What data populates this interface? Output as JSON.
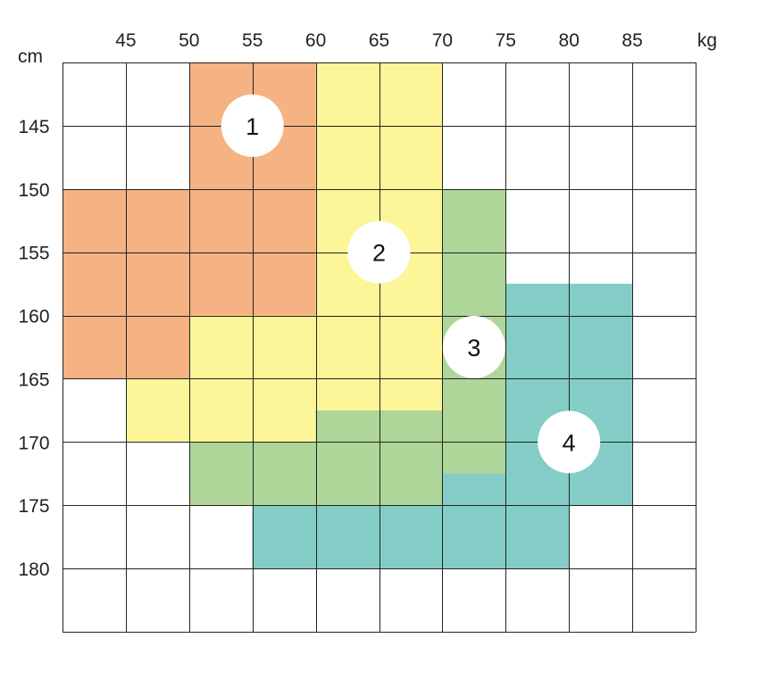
{
  "chart_data": {
    "type": "heatmap",
    "title": "",
    "x_unit": "kg",
    "y_unit": "cm",
    "x_ticks": [
      45,
      50,
      55,
      60,
      65,
      70,
      75,
      80,
      85
    ],
    "y_ticks": [
      145,
      150,
      155,
      160,
      165,
      170,
      175,
      180
    ],
    "xlim": [
      40,
      90
    ],
    "ylim": [
      140,
      185
    ],
    "grid": true,
    "zones": [
      {
        "label": "1",
        "color": "#f5b283",
        "cells": [
          {
            "x": [
              50,
              60
            ],
            "y": [
              140,
              150
            ]
          },
          {
            "x": [
              40,
              60
            ],
            "y": [
              150,
              160
            ]
          },
          {
            "x": [
              40,
              50
            ],
            "y": [
              160,
              165
            ]
          }
        ],
        "label_at": {
          "x": 55,
          "y": 145
        }
      },
      {
        "label": "2",
        "color": "#fdf698",
        "cells": [
          {
            "x": [
              60,
              70
            ],
            "y": [
              140,
              160
            ]
          },
          {
            "x": [
              50,
              70
            ],
            "y": [
              160,
              165
            ]
          },
          {
            "x": [
              45,
              60
            ],
            "y": [
              165,
              170
            ]
          },
          {
            "x": [
              60,
              70
            ],
            "y": [
              165,
              167.5
            ]
          }
        ],
        "label_at": {
          "x": 65,
          "y": 155
        }
      },
      {
        "label": "3",
        "color": "#aed699",
        "cells": [
          {
            "x": [
              70,
              75
            ],
            "y": [
              150,
              172.5
            ]
          },
          {
            "x": [
              60,
              70
            ],
            "y": [
              167.5,
              170
            ]
          },
          {
            "x": [
              50,
              70
            ],
            "y": [
              170,
              175
            ]
          },
          {
            "x": [
              70,
              75
            ],
            "y": [
              172.5,
              175
            ]
          }
        ],
        "label_at": {
          "x": 72.5,
          "y": 162.5
        }
      },
      {
        "label": "4",
        "color": "#84cdc7",
        "cells": [
          {
            "x": [
              75,
              85
            ],
            "y": [
              157.5,
              175
            ]
          },
          {
            "x": [
              70,
              75
            ],
            "y": [
              172.5,
              175
            ]
          },
          {
            "x": [
              55,
              80
            ],
            "y": [
              175,
              180
            ]
          }
        ],
        "label_at": {
          "x": 80,
          "y": 170
        }
      }
    ]
  }
}
